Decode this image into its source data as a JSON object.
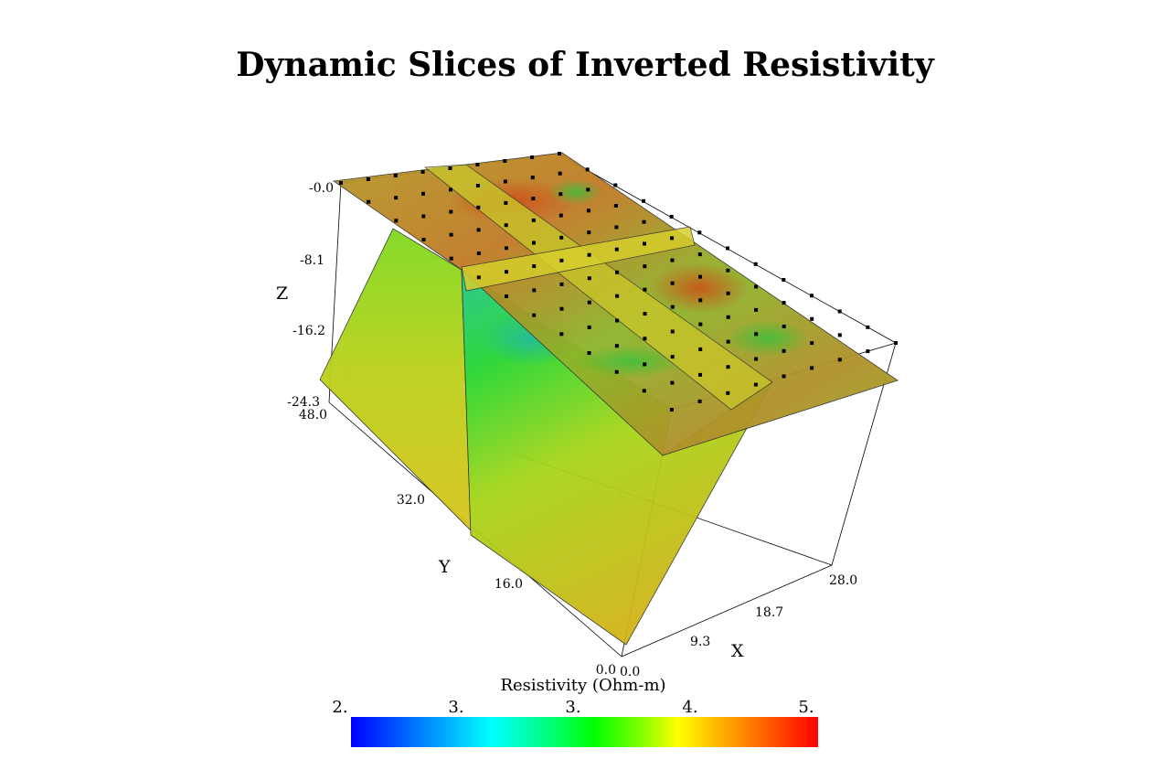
{
  "chart_data": {
    "type": "3d-volume-slices",
    "title": "Dynamic Slices of Inverted Resistivity",
    "x_axis": {
      "label": "X",
      "range": [
        0.0,
        28.0
      ],
      "ticks": [
        "0.0",
        "9.3",
        "18.7",
        "28.0"
      ]
    },
    "y_axis": {
      "label": "Y",
      "range": [
        0.0,
        48.0
      ],
      "ticks": [
        "0.0",
        "16.0",
        "32.0",
        "48.0"
      ]
    },
    "z_axis": {
      "label": "Z",
      "range": [
        -24.3,
        0.0
      ],
      "ticks": [
        "-0.0",
        "-8.1",
        "-16.2",
        "-24.3"
      ]
    },
    "slices": [
      {
        "plane": "z",
        "position": 0.0
      },
      {
        "plane": "x",
        "position": 9.3
      },
      {
        "plane": "oblique",
        "position": "diagonal"
      }
    ],
    "colorbar": {
      "label": "Resistivity (Ohm-m)",
      "tick_labels": [
        "2.",
        "3.",
        "3.",
        "4.",
        "5."
      ],
      "colors": [
        "#0000ff",
        "#0080ff",
        "#00ffff",
        "#00ff80",
        "#00ff00",
        "#80ff00",
        "#ffff00",
        "#ff8000",
        "#ff0000"
      ]
    },
    "electrode_markers": "black squares on surface"
  }
}
